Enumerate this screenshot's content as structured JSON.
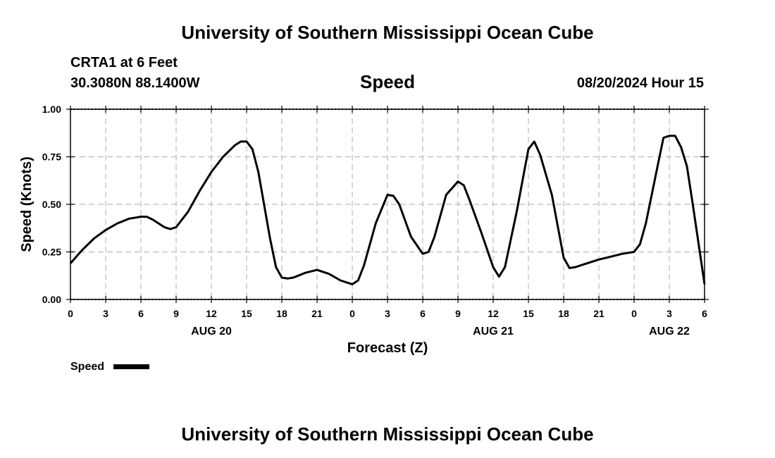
{
  "header": {
    "title": "University of Southern Mississippi Ocean Cube",
    "station": "CRTA1 at 6 Feet",
    "coords": "30.3080N  88.1400W",
    "date": "08/20/2024 Hour 15"
  },
  "footer": {
    "title": "University of Southern Mississippi Ocean Cube"
  },
  "chart_data": {
    "type": "line",
    "title": "Speed",
    "xlabel": "Forecast (Z)",
    "ylabel": "Speed (Knots)",
    "xlim": [
      0,
      54
    ],
    "ylim": [
      0,
      1
    ],
    "grid": true,
    "legend_position": "bottom-left",
    "x_ticks": [
      0,
      3,
      6,
      9,
      12,
      15,
      18,
      21,
      24,
      27,
      30,
      33,
      36,
      39,
      42,
      45,
      48,
      51,
      54
    ],
    "x_tick_labels": [
      "0",
      "3",
      "6",
      "9",
      "12",
      "15",
      "18",
      "21",
      "0",
      "3",
      "6",
      "9",
      "12",
      "15",
      "18",
      "21",
      "0",
      "3",
      "6"
    ],
    "day_labels": [
      {
        "x": 12,
        "label": "AUG 20"
      },
      {
        "x": 36,
        "label": "AUG 21"
      },
      {
        "x": 51,
        "label": "AUG 22"
      }
    ],
    "y_ticks": [
      0,
      0.25,
      0.5,
      0.75,
      1.0
    ],
    "y_tick_labels": [
      "0.00",
      "0.25",
      "0.50",
      "0.75",
      "1.00"
    ],
    "series": [
      {
        "name": "Speed",
        "color": "#000000",
        "x": [
          0,
          1,
          2,
          3,
          4,
          5,
          6,
          6.5,
          7,
          8,
          8.5,
          9,
          10,
          11,
          12,
          13,
          14,
          14.5,
          15,
          15.5,
          16,
          17,
          17.5,
          18,
          18.5,
          19,
          20,
          21,
          22,
          23,
          24,
          24.5,
          25,
          26,
          27,
          27.5,
          28,
          29,
          30,
          30.5,
          31,
          32,
          33,
          33.5,
          34,
          35,
          36,
          36.5,
          37,
          38,
          39,
          39.5,
          40,
          41,
          42,
          42.5,
          43,
          44,
          45,
          46,
          47,
          48,
          48.5,
          49,
          50,
          50.5,
          51,
          51.5,
          52,
          52.5,
          53,
          54
        ],
        "y": [
          0.19,
          0.26,
          0.32,
          0.365,
          0.4,
          0.425,
          0.435,
          0.435,
          0.42,
          0.38,
          0.37,
          0.38,
          0.46,
          0.57,
          0.67,
          0.75,
          0.81,
          0.83,
          0.83,
          0.79,
          0.67,
          0.32,
          0.17,
          0.115,
          0.11,
          0.115,
          0.14,
          0.155,
          0.135,
          0.1,
          0.08,
          0.1,
          0.18,
          0.4,
          0.55,
          0.545,
          0.5,
          0.33,
          0.24,
          0.25,
          0.33,
          0.55,
          0.62,
          0.6,
          0.52,
          0.35,
          0.17,
          0.12,
          0.17,
          0.46,
          0.79,
          0.83,
          0.76,
          0.55,
          0.22,
          0.165,
          0.17,
          0.19,
          0.21,
          0.225,
          0.24,
          0.25,
          0.29,
          0.4,
          0.7,
          0.85,
          0.86,
          0.86,
          0.8,
          0.7,
          0.5,
          0.08
        ]
      }
    ]
  }
}
